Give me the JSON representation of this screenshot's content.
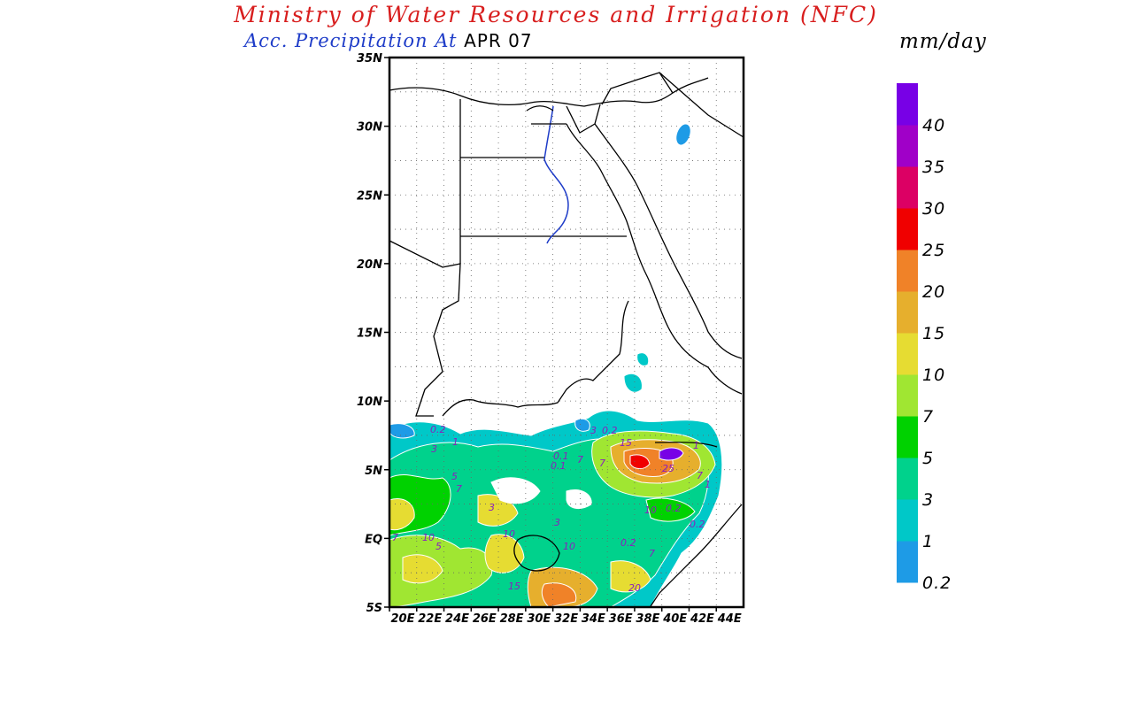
{
  "header": {
    "title": "Ministry of Water Resources and Irrigation (NFC)",
    "subtitle_prefix": "Acc. Precipitation  At",
    "subtitle_date": "APR 07",
    "units": "mm/day"
  },
  "map": {
    "lat_range": [
      -5,
      35
    ],
    "lon_range": [
      20,
      46
    ],
    "lat_ticks": [
      "35N",
      "30N",
      "25N",
      "20N",
      "15N",
      "10N",
      "5N",
      "EQ",
      "5S"
    ],
    "lon_ticks": [
      "20E",
      "22E",
      "24E",
      "26E",
      "28E",
      "30E",
      "32E",
      "34E",
      "36E",
      "38E",
      "40E",
      "42E",
      "44E"
    ],
    "grid": "dotted",
    "contour_labels": [
      "0.2",
      "1",
      "3",
      "5",
      "7",
      "10",
      "15",
      "20",
      "25",
      "0.1"
    ]
  },
  "legend": {
    "levels": [
      "0.2",
      "1",
      "3",
      "5",
      "7",
      "10",
      "15",
      "20",
      "25",
      "30",
      "35",
      "40"
    ],
    "colors": [
      "#1e9be6",
      "#00c8c8",
      "#00d28c",
      "#00d200",
      "#a0e632",
      "#e6dc32",
      "#e6af2d",
      "#f08228",
      "#f00000",
      "#dc0064",
      "#a000c8",
      "#7800e6"
    ]
  }
}
